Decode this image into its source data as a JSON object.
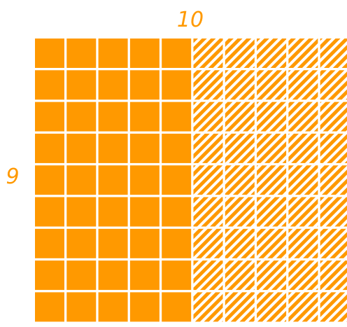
{
  "grid": {
    "columns": 10,
    "rows": 9,
    "solid_columns": 5,
    "top_label": "10",
    "left_label": "9"
  },
  "colors": {
    "fill": "#ff9900",
    "label": "#ff9900",
    "gap": "#ffffff"
  }
}
